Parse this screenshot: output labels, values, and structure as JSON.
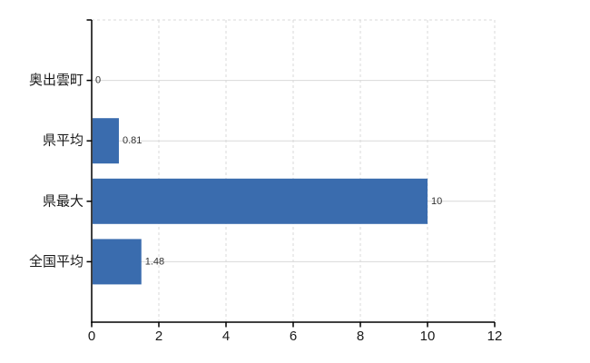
{
  "chart_data": {
    "type": "bar",
    "orientation": "horizontal",
    "title": "",
    "xlabel": "",
    "ylabel": "",
    "categories": [
      "奥出雲町",
      "県平均",
      "県最大",
      "全国平均"
    ],
    "values": [
      0,
      0.81,
      10,
      1.48
    ],
    "value_labels": [
      "0",
      "0.81",
      "10",
      "1.48"
    ],
    "xlim": [
      0,
      12
    ],
    "xticks": [
      0,
      2,
      4,
      6,
      8,
      10,
      12
    ],
    "xtick_labels": [
      "0",
      "2",
      "4",
      "6",
      "8",
      "10",
      "12"
    ],
    "grid": "on",
    "gridline_style": {
      "vertical": "dashed",
      "horizontal": "solid"
    },
    "legend": "none",
    "colors": {
      "bar": "#3a6cae",
      "grid": "#d9d9d9",
      "axis": "#000000",
      "category_label": "#1a1a1a",
      "tick_label": "#1a1a1a",
      "value_label": "#333333",
      "background": "#ffffff"
    }
  }
}
